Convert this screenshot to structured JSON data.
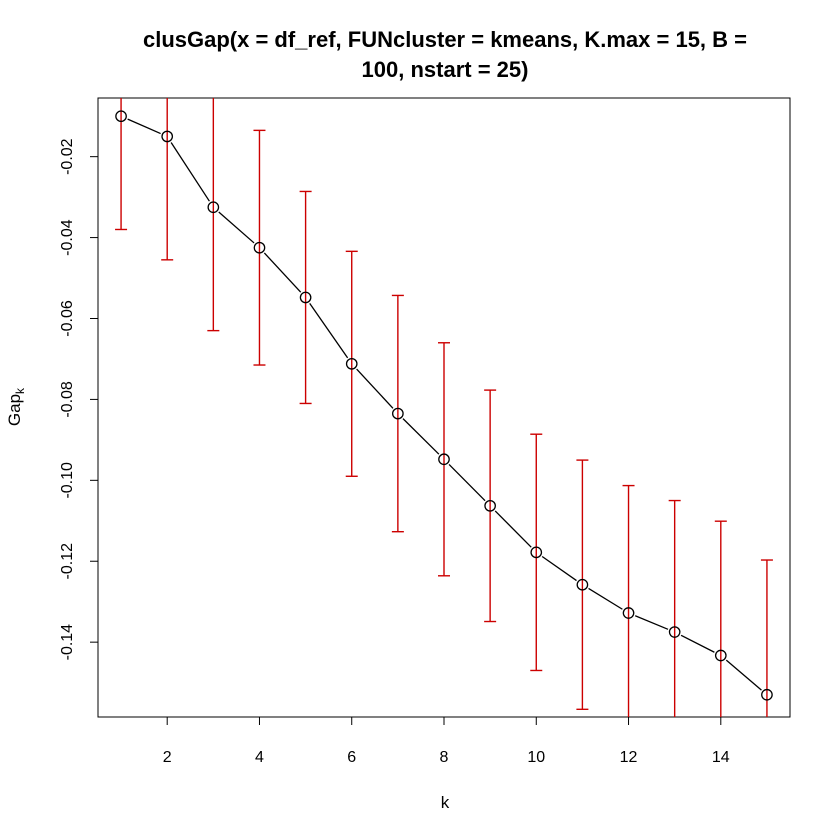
{
  "chart_data": {
    "type": "line",
    "title_lines": [
      "clusGap(x = df_ref, FUNcluster = kmeans, K.max = 15, B =",
      "100, nstart = 25)"
    ],
    "xlabel": "k",
    "ylabel_main": "Gap",
    "ylabel_sub": "k",
    "xlim": [
      0.5,
      15.5
    ],
    "ylim": [
      -0.1585,
      -0.0055
    ],
    "x_ticks": [
      2,
      4,
      6,
      8,
      10,
      12,
      14
    ],
    "y_ticks": [
      -0.02,
      -0.04,
      -0.06,
      -0.08,
      -0.1,
      -0.12,
      -0.14
    ],
    "y_tick_labels": [
      "-0.02",
      "-0.04",
      "-0.06",
      "-0.08",
      "-0.10",
      "-0.12",
      "-0.14"
    ],
    "x": [
      1,
      2,
      3,
      4,
      5,
      6,
      7,
      8,
      9,
      10,
      11,
      12,
      13,
      14,
      15
    ],
    "gap": [
      -0.01,
      -0.015,
      -0.0325,
      -0.0425,
      -0.0548,
      -0.0712,
      -0.0835,
      -0.0948,
      -0.1063,
      -0.1178,
      -0.1258,
      -0.1328,
      -0.1375,
      -0.1433,
      -0.153
    ],
    "se": [
      0.028,
      0.0305,
      0.0305,
      0.029,
      0.0262,
      0.0278,
      0.0292,
      0.0288,
      0.0286,
      0.0292,
      0.0308,
      0.0315,
      0.0325,
      0.0332,
      0.0333
    ],
    "line_color": "#000000",
    "errorbar_color": "#CC0000",
    "grid": false
  }
}
